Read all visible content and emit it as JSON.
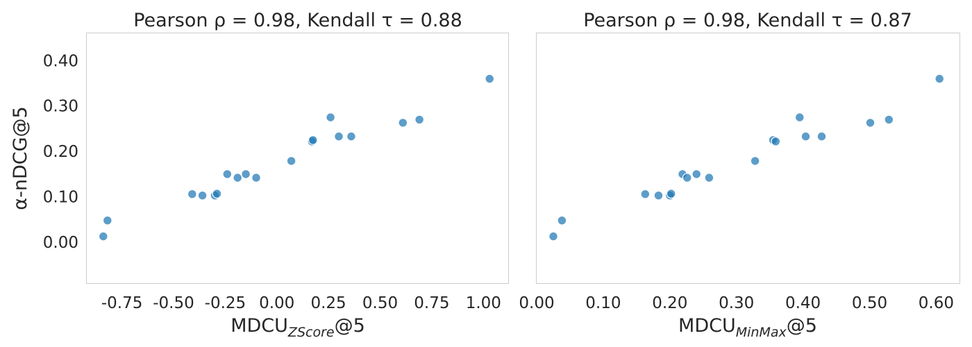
{
  "chart_data": [
    {
      "type": "scatter",
      "title": "Pearson ρ = 0.98, Kendall τ = 0.88",
      "xlabel": {
        "base": "MDCU",
        "subscript": "ZScore",
        "suffix": "@5"
      },
      "ylabel": "α-nDCG@5",
      "xlim": [
        -0.92,
        1.12
      ],
      "ylim": [
        -0.09,
        0.46
      ],
      "xticks": [
        -0.75,
        -0.5,
        -0.25,
        0.0,
        0.25,
        0.5,
        0.75,
        1.0
      ],
      "xtick_labels": [
        "-0.75",
        "-0.50",
        "-0.25",
        "0.00",
        "0.25",
        "0.50",
        "0.75",
        "1.00"
      ],
      "yticks": [
        0.0,
        0.1,
        0.2,
        0.3,
        0.4
      ],
      "ytick_labels": [
        "0.00",
        "0.10",
        "0.20",
        "0.30",
        "0.40"
      ],
      "grid": false,
      "color": "#1f77b4",
      "points": [
        {
          "x": -0.84,
          "y": 0.013
        },
        {
          "x": -0.82,
          "y": 0.048
        },
        {
          "x": -0.41,
          "y": 0.106
        },
        {
          "x": -0.36,
          "y": 0.103
        },
        {
          "x": -0.3,
          "y": 0.103
        },
        {
          "x": -0.29,
          "y": 0.107
        },
        {
          "x": -0.24,
          "y": 0.15
        },
        {
          "x": -0.19,
          "y": 0.142
        },
        {
          "x": -0.15,
          "y": 0.15
        },
        {
          "x": -0.1,
          "y": 0.142
        },
        {
          "x": 0.07,
          "y": 0.179
        },
        {
          "x": 0.17,
          "y": 0.222
        },
        {
          "x": 0.175,
          "y": 0.225
        },
        {
          "x": 0.26,
          "y": 0.275
        },
        {
          "x": 0.3,
          "y": 0.233
        },
        {
          "x": 0.36,
          "y": 0.233
        },
        {
          "x": 0.61,
          "y": 0.263
        },
        {
          "x": 0.69,
          "y": 0.27
        },
        {
          "x": 1.03,
          "y": 0.36
        }
      ]
    },
    {
      "type": "scatter",
      "title": "Pearson ρ = 0.98, Kendall τ = 0.87",
      "xlabel": {
        "base": "MDCU",
        "subscript": "MinMax",
        "suffix": "@5"
      },
      "ylabel": "",
      "xlim": [
        0.0,
        0.635
      ],
      "ylim": [
        -0.09,
        0.46
      ],
      "xticks": [
        0.0,
        0.1,
        0.2,
        0.3,
        0.4,
        0.5,
        0.6
      ],
      "xtick_labels": [
        "0.00",
        "0.10",
        "0.20",
        "0.30",
        "0.40",
        "0.50",
        "0.60"
      ],
      "yticks": [],
      "ytick_labels": [],
      "grid": false,
      "color": "#1f77b4",
      "points": [
        {
          "x": 0.025,
          "y": 0.013
        },
        {
          "x": 0.038,
          "y": 0.048
        },
        {
          "x": 0.163,
          "y": 0.106
        },
        {
          "x": 0.183,
          "y": 0.103
        },
        {
          "x": 0.2,
          "y": 0.103
        },
        {
          "x": 0.202,
          "y": 0.107
        },
        {
          "x": 0.219,
          "y": 0.15
        },
        {
          "x": 0.226,
          "y": 0.142
        },
        {
          "x": 0.24,
          "y": 0.15
        },
        {
          "x": 0.259,
          "y": 0.142
        },
        {
          "x": 0.328,
          "y": 0.179
        },
        {
          "x": 0.355,
          "y": 0.225
        },
        {
          "x": 0.359,
          "y": 0.222
        },
        {
          "x": 0.395,
          "y": 0.275
        },
        {
          "x": 0.404,
          "y": 0.233
        },
        {
          "x": 0.428,
          "y": 0.233
        },
        {
          "x": 0.501,
          "y": 0.263
        },
        {
          "x": 0.529,
          "y": 0.27
        },
        {
          "x": 0.605,
          "y": 0.36
        }
      ]
    }
  ]
}
